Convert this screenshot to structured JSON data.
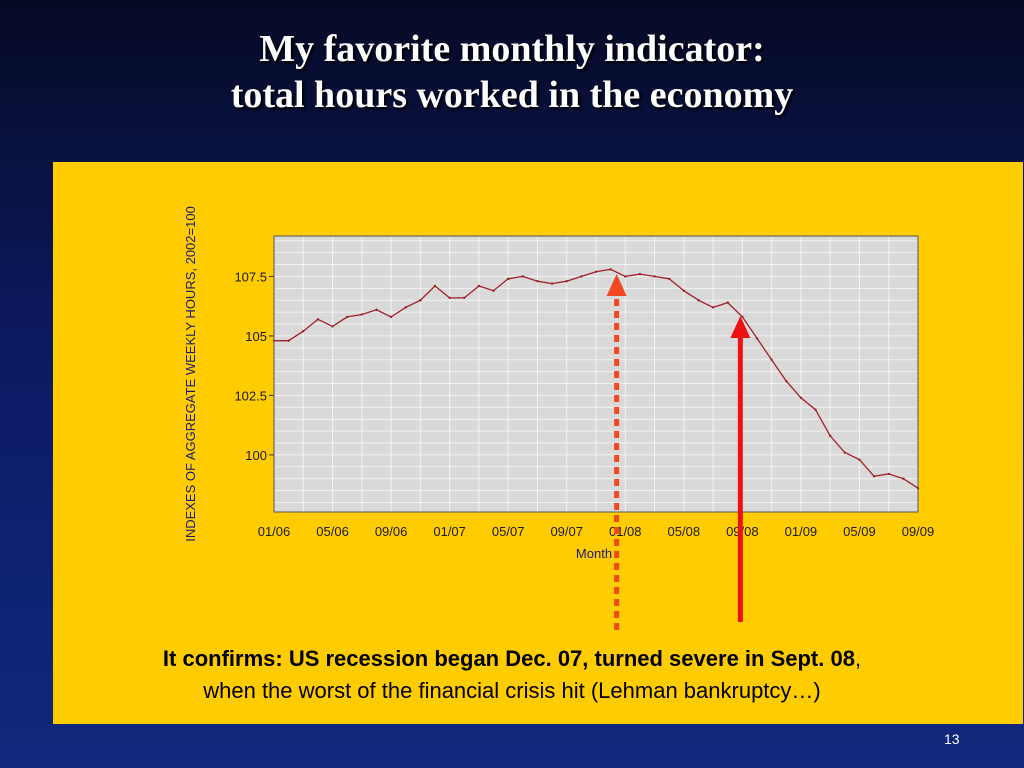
{
  "slide": {
    "title_line1": "My favorite monthly indicator:",
    "title_line2": "total hours worked in the economy",
    "caption_bold": "It confirms:   US recession began Dec. 07, turned severe in Sept. 08",
    "caption_rest_first": ",",
    "caption_line2": "when the worst of the financial crisis hit (Lehman bankruptcy…)",
    "page_number": "13"
  },
  "colors": {
    "panel": "#ffcc00",
    "plot_bg": "#d9d9d9",
    "series": "#a0202a",
    "arrow_recession_start": "#f04820",
    "arrow_severe": "#ee1111"
  },
  "annotations": [
    {
      "name": "recession-start-arrow",
      "style": "dotted",
      "points_to": "12/07"
    },
    {
      "name": "severe-arrow",
      "style": "solid",
      "points_to": "09/08"
    }
  ],
  "chart_data": {
    "type": "line",
    "title": "",
    "xlabel": "Month",
    "ylabel": "INDEXES OF AGGREGATE WEEKLY HOURS, 2002=100",
    "ylim": [
      97.6,
      109.2
    ],
    "yticks": [
      100,
      102.5,
      105,
      107.5
    ],
    "ytick_labels": [
      "100",
      "102.5",
      "105",
      "107.5"
    ],
    "xtick_labels": [
      "01/06",
      "05/06",
      "09/06",
      "01/07",
      "05/07",
      "09/07",
      "01/08",
      "05/08",
      "09/08",
      "01/09",
      "05/09",
      "09/09"
    ],
    "grid": true,
    "series": [
      {
        "x": [
          "01/06",
          "02/06",
          "03/06",
          "04/06",
          "05/06",
          "06/06",
          "07/06",
          "08/06",
          "09/06",
          "10/06",
          "11/06",
          "12/06",
          "01/07",
          "02/07",
          "03/07",
          "04/07",
          "05/07",
          "06/07",
          "07/07",
          "08/07",
          "09/07",
          "10/07",
          "11/07",
          "12/07",
          "01/08",
          "02/08",
          "03/08",
          "04/08",
          "05/08",
          "06/08",
          "07/08",
          "08/08",
          "09/08",
          "10/08",
          "11/08",
          "12/08",
          "01/09",
          "02/09",
          "03/09",
          "04/09",
          "05/09",
          "06/09",
          "07/09",
          "08/09",
          "09/09"
        ],
        "values": [
          104.8,
          104.8,
          105.2,
          105.7,
          105.4,
          105.8,
          105.9,
          106.1,
          105.8,
          106.2,
          106.5,
          107.1,
          106.6,
          106.6,
          107.1,
          106.9,
          107.4,
          107.5,
          107.3,
          107.2,
          107.3,
          107.5,
          107.7,
          107.8,
          107.5,
          107.6,
          107.5,
          107.4,
          106.9,
          106.5,
          106.2,
          106.4,
          105.8,
          104.9,
          104.0,
          103.1,
          102.4,
          101.9,
          100.8,
          100.1,
          99.8,
          99.1,
          99.2,
          99.0,
          98.6
        ]
      }
    ]
  }
}
